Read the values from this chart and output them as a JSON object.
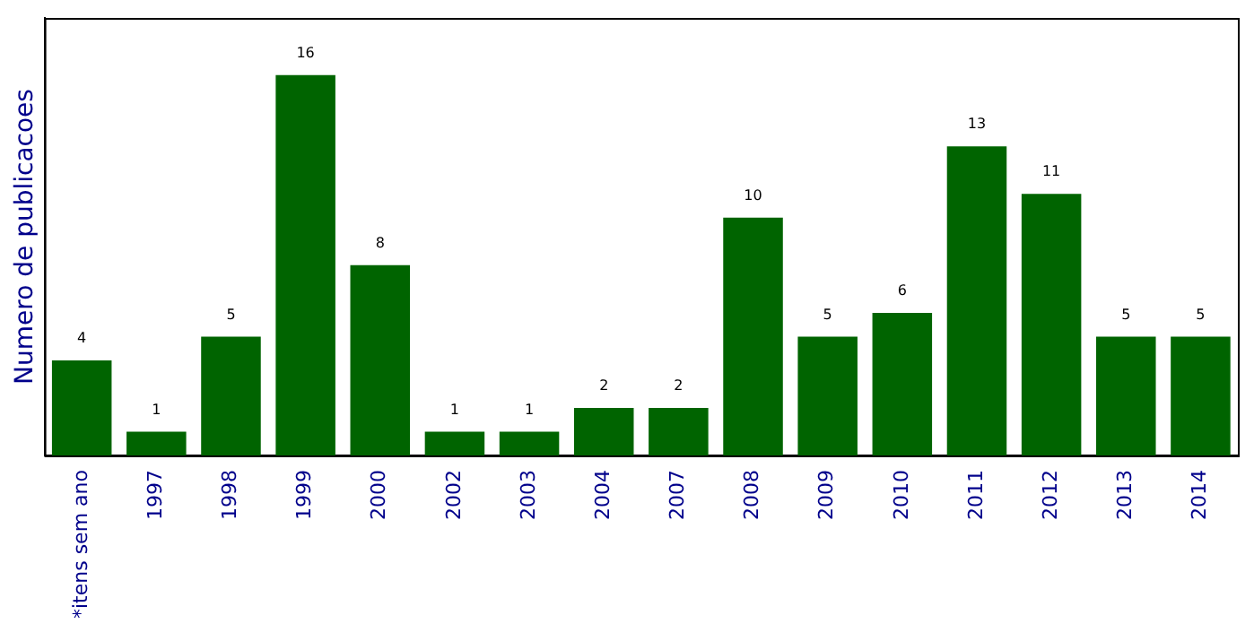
{
  "chart_data": {
    "type": "bar",
    "ylabel": "Numero de publicacoes",
    "categories": [
      "*itens sem ano",
      "1997",
      "1998",
      "1999",
      "2000",
      "2002",
      "2003",
      "2004",
      "2007",
      "2008",
      "2009",
      "2010",
      "2011",
      "2012",
      "2013",
      "2014"
    ],
    "values": [
      4,
      1,
      5,
      16,
      8,
      1,
      1,
      2,
      2,
      10,
      5,
      6,
      13,
      11,
      5,
      5
    ],
    "color": "#006400",
    "ylim": [
      0,
      18.4
    ],
    "grid": false,
    "legend": false,
    "tick_labels": "x",
    "data_labels": true
  }
}
